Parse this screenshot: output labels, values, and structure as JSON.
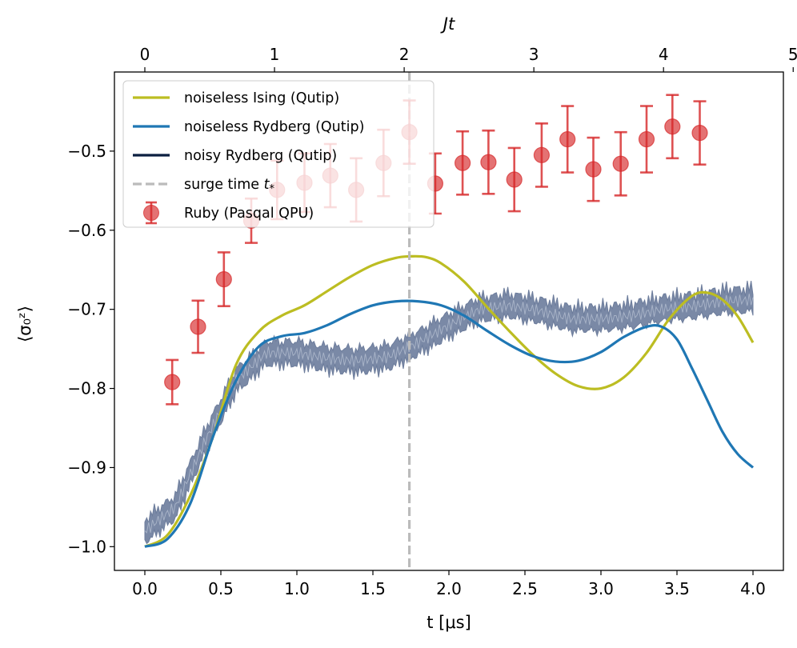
{
  "chart_data": {
    "type": "line",
    "xlabel": "t [μs]",
    "ylabel": "⟨σ₀ᶻ⟩",
    "top_xlabel": "Jt",
    "xlim": [
      -0.2,
      4.2
    ],
    "ylim": [
      -1.03,
      -0.4
    ],
    "top_xlim_jt": [
      -0.2345,
      4.9245
    ],
    "x_ticks": [
      0.0,
      0.5,
      1.0,
      1.5,
      2.0,
      2.5,
      3.0,
      3.5,
      4.0
    ],
    "x_tick_labels": [
      "0.0",
      "0.5",
      "1.0",
      "1.5",
      "2.0",
      "2.5",
      "3.0",
      "3.5",
      "4.0"
    ],
    "y_ticks": [
      -1.0,
      -0.9,
      -0.8,
      -0.7,
      -0.6,
      -0.5
    ],
    "y_tick_labels": [
      "−1.0",
      "−0.9",
      "−0.8",
      "−0.7",
      "−0.6",
      "−0.5"
    ],
    "top_ticks": [
      0,
      1,
      2,
      3,
      4,
      5
    ],
    "top_tick_labels": [
      "0",
      "1",
      "2",
      "3",
      "4",
      "5"
    ],
    "legend_position": "top-left",
    "series": [
      {
        "name": "noiseless Ising (Qutip)",
        "kind": "line",
        "color": "#bcbd22",
        "x": [
          0.0,
          0.15,
          0.3,
          0.45,
          0.6,
          0.75,
          0.9,
          1.05,
          1.2,
          1.35,
          1.5,
          1.65,
          1.75,
          1.85,
          1.95,
          2.1,
          2.25,
          2.4,
          2.55,
          2.7,
          2.85,
          3.0,
          3.15,
          3.3,
          3.45,
          3.6,
          3.7,
          3.8,
          3.9,
          4.0
        ],
        "y": [
          -1.0,
          -0.985,
          -0.935,
          -0.86,
          -0.77,
          -0.728,
          -0.708,
          -0.695,
          -0.677,
          -0.659,
          -0.644,
          -0.635,
          -0.633,
          -0.634,
          -0.642,
          -0.665,
          -0.697,
          -0.728,
          -0.757,
          -0.781,
          -0.797,
          -0.8,
          -0.786,
          -0.755,
          -0.712,
          -0.683,
          -0.679,
          -0.688,
          -0.709,
          -0.742
        ]
      },
      {
        "name": "noiseless Rydberg (Qutip)",
        "kind": "line",
        "color": "#1f77b4",
        "x": [
          0.0,
          0.15,
          0.3,
          0.45,
          0.6,
          0.75,
          0.9,
          1.05,
          1.2,
          1.35,
          1.5,
          1.65,
          1.8,
          1.95,
          2.1,
          2.25,
          2.4,
          2.55,
          2.7,
          2.85,
          3.0,
          3.15,
          3.3,
          3.4,
          3.5,
          3.6,
          3.7,
          3.8,
          3.9,
          4.0
        ],
        "y": [
          -1.0,
          -0.99,
          -0.945,
          -0.86,
          -0.79,
          -0.747,
          -0.734,
          -0.73,
          -0.72,
          -0.706,
          -0.695,
          -0.69,
          -0.69,
          -0.695,
          -0.708,
          -0.727,
          -0.745,
          -0.759,
          -0.766,
          -0.765,
          -0.754,
          -0.735,
          -0.722,
          -0.722,
          -0.738,
          -0.775,
          -0.815,
          -0.855,
          -0.883,
          -0.9
        ]
      },
      {
        "name": "noisy Rydberg (Qutip)",
        "kind": "band",
        "color": "#0b1f40",
        "fill": "#7a89a6",
        "x": [
          0.0,
          0.2,
          0.4,
          0.6,
          0.8,
          1.0,
          1.2,
          1.4,
          1.6,
          1.8,
          2.0,
          2.2,
          2.4,
          2.6,
          2.8,
          3.0,
          3.2,
          3.4,
          3.6,
          3.8,
          4.0
        ],
        "y": [
          -0.98,
          -0.95,
          -0.865,
          -0.79,
          -0.755,
          -0.755,
          -0.762,
          -0.765,
          -0.76,
          -0.742,
          -0.72,
          -0.7,
          -0.695,
          -0.702,
          -0.712,
          -0.712,
          -0.708,
          -0.7,
          -0.696,
          -0.69,
          -0.688
        ],
        "band_halfwidth": 0.015
      },
      {
        "name": "surge time t*",
        "kind": "vline",
        "color": "#bbbbbb",
        "x": 1.74
      },
      {
        "name": "Ruby (Pasqal QPU)",
        "kind": "errorbar",
        "color": "#d62728",
        "x": [
          0.18,
          0.35,
          0.52,
          0.7,
          0.87,
          1.05,
          1.22,
          1.39,
          1.57,
          1.74,
          1.91,
          2.09,
          2.26,
          2.43,
          2.61,
          2.78,
          2.95,
          3.13,
          3.3,
          3.47,
          3.65
        ],
        "y": [
          -0.792,
          -0.722,
          -0.662,
          -0.588,
          -0.549,
          -0.54,
          -0.531,
          -0.549,
          -0.515,
          -0.476,
          -0.541,
          -0.515,
          -0.514,
          -0.536,
          -0.505,
          -0.485,
          -0.523,
          -0.516,
          -0.485,
          -0.469,
          -0.477
        ],
        "yerr": [
          0.028,
          0.033,
          0.034,
          0.028,
          0.037,
          0.037,
          0.04,
          0.04,
          0.042,
          0.04,
          0.038,
          0.04,
          0.04,
          0.04,
          0.04,
          0.042,
          0.04,
          0.04,
          0.042,
          0.04,
          0.04
        ]
      }
    ]
  },
  "legend": {
    "entries": [
      {
        "label": "noiseless Ising (Qutip)",
        "marker": "line",
        "color": "#bcbd22"
      },
      {
        "label": "noiseless Rydberg (Qutip)",
        "marker": "line",
        "color": "#1f77b4"
      },
      {
        "label": "noisy Rydberg (Qutip)",
        "marker": "line",
        "color": "#0b1f40"
      },
      {
        "label": "surge time ",
        "label_math": "t",
        "label_sub": "*",
        "marker": "dash",
        "color": "#bbbbbb"
      },
      {
        "label": "Ruby (Pasqal QPU)",
        "marker": "errorbar",
        "color": "#d62728"
      }
    ]
  }
}
